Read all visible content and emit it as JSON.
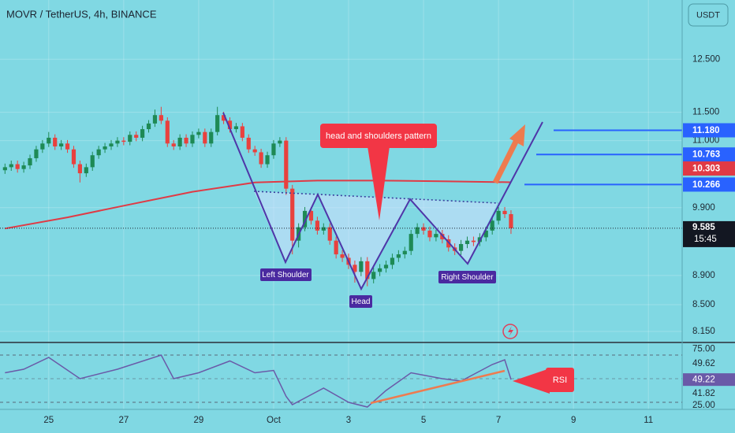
{
  "chart_data": {
    "type": "candlestick",
    "title": "MOVR / TetherUS, 4h, BINANCE",
    "currency": "USDT",
    "log_scale": true,
    "grid": true,
    "up_color": "#1e8a55",
    "down_color": "#e8413e",
    "xlim": [
      -0.8,
      108.4
    ],
    "xticks": [
      {
        "value": 7,
        "label": "25"
      },
      {
        "value": 19,
        "label": "27"
      },
      {
        "value": 31,
        "label": "29"
      },
      {
        "value": 43,
        "label": "Oct"
      },
      {
        "value": 55,
        "label": "3"
      },
      {
        "value": 67,
        "label": "5"
      },
      {
        "value": 79,
        "label": "7"
      },
      {
        "value": 91,
        "label": "9"
      },
      {
        "value": 103,
        "label": "11"
      }
    ],
    "ylim": [
      8.04,
      13.72
    ],
    "yticks": [
      {
        "value": 12.5,
        "label": "12.500"
      },
      {
        "value": 11.5,
        "label": "11.500"
      },
      {
        "value": 11,
        "label": "11.000"
      },
      {
        "value": 9.9,
        "label": "9.900"
      },
      {
        "value": 8.9,
        "label": "8.900"
      },
      {
        "value": 8.5,
        "label": "8.500"
      },
      {
        "value": 8.15,
        "label": "8.150"
      }
    ],
    "open": [
      10.5,
      10.55,
      10.6,
      10.52,
      10.58,
      10.7,
      10.85,
      10.95,
      11.05,
      10.9,
      10.95,
      10.85,
      10.6,
      10.45,
      10.55,
      10.75,
      10.85,
      10.9,
      10.95,
      11.0,
      10.98,
      11.1,
      11.05,
      11.2,
      11.3,
      11.45,
      11.35,
      10.95,
      10.9,
      11.05,
      10.95,
      11.1,
      11.15,
      10.95,
      11.15,
      11.45,
      11.35,
      11.2,
      11.25,
      11.05,
      10.85,
      10.8,
      10.6,
      10.75,
      10.95,
      11.0,
      10.2,
      9.4,
      9.6,
      9.85,
      9.7,
      9.55,
      9.6,
      9.4,
      9.2,
      9.15,
      9.05,
      8.95,
      9.1,
      8.85,
      8.95,
      9.0,
      9.05,
      9.15,
      9.2,
      9.25,
      9.5,
      9.6,
      9.55,
      9.45,
      9.5,
      9.42,
      9.3,
      9.25,
      9.35,
      9.4,
      9.38,
      9.45,
      9.55,
      9.7,
      9.85,
      9.8
    ],
    "high": [
      10.61,
      10.66,
      10.66,
      10.64,
      10.76,
      10.91,
      11.01,
      11.15,
      11.11,
      11.01,
      11.01,
      10.91,
      10.66,
      10.61,
      10.81,
      10.91,
      10.96,
      11.01,
      11.06,
      11.06,
      11.16,
      11.16,
      11.26,
      11.36,
      11.55,
      11.6,
      11.41,
      11.01,
      11.11,
      11.11,
      11.16,
      11.21,
      11.21,
      11.21,
      11.6,
      11.51,
      11.41,
      11.31,
      11.31,
      11.11,
      10.91,
      10.86,
      10.81,
      11.01,
      11.06,
      11.06,
      10.26,
      9.66,
      9.91,
      9.91,
      9.76,
      9.66,
      9.66,
      9.46,
      9.26,
      9.21,
      9.11,
      9.16,
      9.16,
      9.01,
      9.06,
      9.11,
      9.21,
      9.26,
      9.31,
      9.56,
      9.66,
      9.66,
      9.61,
      9.56,
      9.56,
      9.48,
      9.36,
      9.41,
      9.46,
      9.46,
      9.51,
      9.61,
      9.76,
      9.91,
      9.91,
      9.86
    ],
    "low": [
      10.44,
      10.49,
      10.46,
      10.46,
      10.52,
      10.64,
      10.79,
      10.89,
      10.84,
      10.84,
      10.79,
      10.54,
      10.3,
      10.39,
      10.49,
      10.69,
      10.79,
      10.84,
      10.89,
      10.92,
      10.92,
      10.99,
      10.99,
      11.14,
      11.24,
      11.29,
      10.89,
      10.84,
      10.84,
      10.89,
      10.89,
      11.04,
      10.89,
      10.89,
      11.09,
      11.29,
      11.14,
      11.14,
      10.99,
      10.79,
      10.74,
      10.54,
      10.54,
      10.69,
      10.89,
      10.1,
      9.2,
      9.3,
      9.54,
      9.64,
      9.49,
      9.49,
      9.34,
      9.14,
      9.09,
      8.99,
      8.8,
      8.89,
      8.75,
      8.79,
      8.89,
      8.94,
      8.99,
      9.09,
      9.14,
      9.19,
      9.44,
      9.49,
      9.39,
      9.39,
      9.36,
      9.24,
      9.19,
      9.19,
      9.29,
      9.32,
      9.32,
      9.39,
      9.49,
      9.64,
      9.74,
      9.5
    ],
    "close": [
      10.55,
      10.6,
      10.52,
      10.58,
      10.7,
      10.85,
      10.95,
      11.05,
      10.9,
      10.95,
      10.85,
      10.6,
      10.45,
      10.55,
      10.75,
      10.85,
      10.9,
      10.95,
      11.0,
      10.98,
      11.1,
      11.05,
      11.2,
      11.3,
      11.45,
      11.35,
      10.95,
      10.9,
      11.05,
      10.95,
      11.1,
      11.15,
      10.95,
      11.15,
      11.45,
      11.35,
      11.2,
      11.25,
      11.05,
      10.85,
      10.8,
      10.6,
      10.75,
      10.95,
      11.0,
      10.2,
      9.4,
      9.6,
      9.85,
      9.7,
      9.55,
      9.6,
      9.4,
      9.2,
      9.15,
      9.05,
      8.95,
      9.1,
      8.85,
      8.95,
      9.0,
      9.05,
      9.15,
      9.2,
      9.25,
      9.5,
      9.6,
      9.55,
      9.45,
      9.5,
      9.42,
      9.3,
      9.25,
      9.35,
      9.4,
      9.38,
      9.45,
      9.55,
      9.7,
      9.85,
      9.8,
      9.585
    ],
    "countdown": "15:45",
    "moving_average": {
      "color": "#e03a45",
      "x": [
        0,
        10,
        20,
        30,
        40,
        50,
        60,
        70,
        81
      ],
      "values": [
        9.58,
        9.75,
        9.95,
        10.15,
        10.3,
        10.33,
        10.33,
        10.32,
        10.303
      ]
    },
    "levels": {
      "color": "#2962ff",
      "values": [
        {
          "value": 11.18,
          "label": "11.180"
        },
        {
          "value": 10.763,
          "label": "10.763"
        },
        {
          "value": 10.266,
          "label": "10.266"
        }
      ]
    },
    "annotations": {
      "pattern": "head and shoulders pattern",
      "left": "Left Shoulder",
      "head": "Head",
      "right": "Right Shoulder",
      "rsi": "RSI"
    },
    "rsi": {
      "color": "#6a5aa8",
      "ylim": [
        24,
        79.3
      ],
      "yticks": [
        {
          "value": 75,
          "label": "75.00"
        },
        {
          "value": 25,
          "label": "25.00"
        }
      ],
      "x": [
        0,
        3,
        7,
        12,
        18,
        25,
        27,
        31,
        36,
        40,
        43,
        45,
        46,
        51,
        55,
        58,
        61,
        65,
        70,
        73,
        78,
        80,
        81
      ],
      "values": [
        55,
        58,
        68,
        50,
        58,
        70,
        50,
        55,
        65,
        55,
        57,
        35,
        28,
        42,
        30,
        26,
        40,
        55,
        50,
        48,
        62,
        66,
        49.22
      ],
      "band_labels": [
        49.62,
        41.82
      ]
    }
  }
}
